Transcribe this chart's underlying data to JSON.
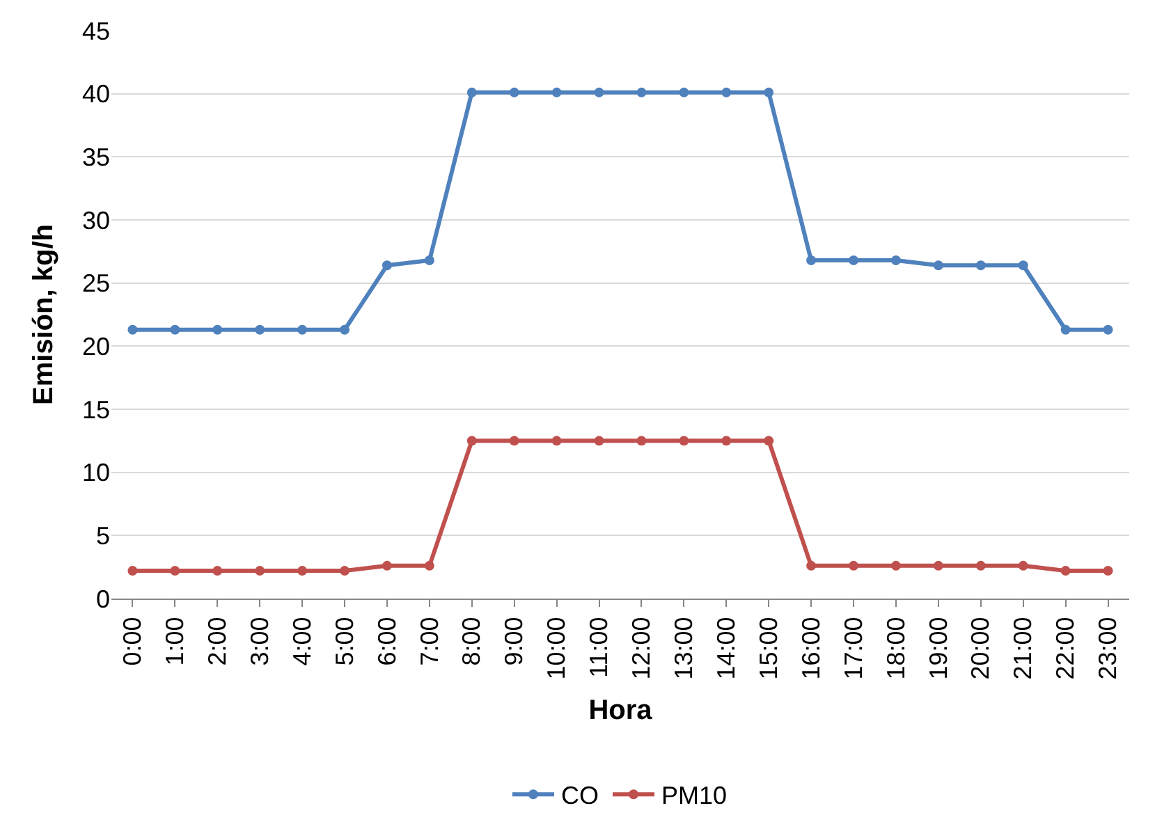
{
  "chart_data": {
    "type": "line",
    "xlabel": "Hora",
    "ylabel": "Emisión, kg/h",
    "categories": [
      "0:00",
      "1:00",
      "2:00",
      "3:00",
      "4:00",
      "5:00",
      "6:00",
      "7:00",
      "8:00",
      "9:00",
      "10:00",
      "11:00",
      "12:00",
      "13:00",
      "14:00",
      "15:00",
      "16:00",
      "17:00",
      "18:00",
      "19:00",
      "20:00",
      "21:00",
      "22:00",
      "23:00"
    ],
    "series": [
      {
        "name": "CO",
        "color": "#4f81bd",
        "values": [
          21.3,
          21.3,
          21.3,
          21.3,
          21.3,
          21.3,
          26.4,
          26.8,
          40.1,
          40.1,
          40.1,
          40.1,
          40.1,
          40.1,
          40.1,
          40.1,
          26.8,
          26.8,
          26.8,
          26.4,
          26.4,
          26.4,
          21.3,
          21.3
        ]
      },
      {
        "name": "PM10",
        "color": "#c0504d",
        "values": [
          2.2,
          2.2,
          2.2,
          2.2,
          2.2,
          2.2,
          2.6,
          2.6,
          12.5,
          12.5,
          12.5,
          12.5,
          12.5,
          12.5,
          12.5,
          12.5,
          2.6,
          2.6,
          2.6,
          2.6,
          2.6,
          2.6,
          2.2,
          2.2
        ]
      }
    ],
    "ylim": [
      0,
      45
    ],
    "yticks": [
      0,
      5,
      10,
      15,
      20,
      25,
      30,
      35,
      40,
      45
    ],
    "grid": "y",
    "legend": "bottom",
    "marker": "circle",
    "line_style": "solid"
  }
}
